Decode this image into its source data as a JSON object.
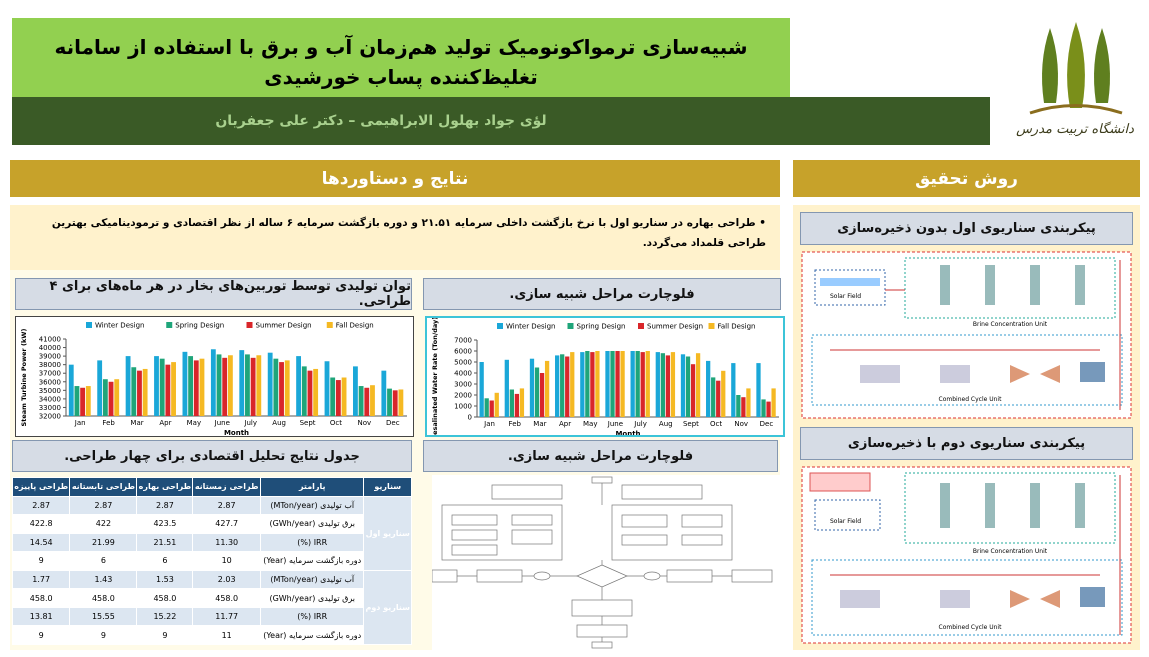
{
  "header": {
    "title": "شبیه‌سازی ترمواکونومیک تولید هم‌زمان آب و برق با استفاده از سامانه تغلیظ‌کننده پساب خورشیدی",
    "authors": "لؤی جواد بهلول الابراهیمی – دکتر علی جعفریان",
    "logo_text": "دانشگاه تربیت مدرس"
  },
  "method": {
    "title": "روش تحقیق",
    "scenario1_title": "پیکربندی سناریوی اول بدون ذخیره‌سازی",
    "scenario2_title": "پیکربندی سناریوی دوم با ذخیره‌سازی",
    "labels": [
      "Solar Field",
      "Brine Concentration Unit",
      "Combined Cycle Unit"
    ]
  },
  "results": {
    "title": "نتایج و دستاوردها",
    "bullet": "طراحی بهاره در سناریو اول با نرخ بازگشت داخلی سرمایه ۲۱.۵۱ و دوره بازگشت سرمایه ۶ ساله از نظر اقتصادی و ترمودینامیکی بهترین طراحی قلمداد می‌گردد.",
    "chart1_title": "توان تولیدی توسط توربین‌های بخار در هر ماه‌های برای ۴ طراحی.",
    "chart2_title": "فلوچارت مراحل شبیه سازی.",
    "table_title": "جدول نتایج تحلیل اقتصادی برای چهار طراحی.",
    "flowchart_title": "فلوچارت مراحل شبیه سازی."
  },
  "table": {
    "headers": [
      "سناریو",
      "پارامتر",
      "طراحی زمستانه",
      "طراحی بهاره",
      "طراحی تابستانه",
      "طراحی پاییزه"
    ],
    "groups": [
      {
        "name": "سناریو اول",
        "rows": [
          [
            "آب تولیدی (MTon/year)",
            "2.87",
            "2.87",
            "2.87",
            "2.87"
          ],
          [
            "برق تولیدی (GWh/year)",
            "427.7",
            "423.5",
            "422",
            "422.8"
          ],
          [
            "IRR (%)",
            "11.30",
            "21.51",
            "21.99",
            "14.54"
          ],
          [
            "دوره بازگشت سرمایه (Year)",
            "10",
            "6",
            "6",
            "9"
          ]
        ]
      },
      {
        "name": "سناریو دوم",
        "rows": [
          [
            "آب تولیدی (MTon/year)",
            "2.03",
            "1.53",
            "1.43",
            "1.77"
          ],
          [
            "برق تولیدی (GWh/year)",
            "458.0",
            "458.0",
            "458.0",
            "458.0"
          ],
          [
            "IRR (%)",
            "11.77",
            "15.22",
            "15.55",
            "13.81"
          ],
          [
            "دوره بازگشت سرمایه (Year)",
            "11",
            "9",
            "9",
            "9"
          ]
        ]
      }
    ]
  },
  "chart_data": [
    {
      "type": "bar",
      "x_label": "Month",
      "y_label": "Steam Turbine Power (kW)",
      "categories": [
        "Jan",
        "Feb",
        "Mar",
        "Apr",
        "May",
        "June",
        "July",
        "Aug",
        "Sept",
        "Oct",
        "Nov",
        "Dec"
      ],
      "series": [
        {
          "name": "Winter Design",
          "color": "#1aa7d8",
          "values": [
            38000,
            38500,
            39000,
            39000,
            39500,
            39800,
            39700,
            39400,
            39000,
            38400,
            37800,
            37300
          ]
        },
        {
          "name": "Spring Design",
          "color": "#1fa57a",
          "values": [
            35500,
            36300,
            37700,
            38700,
            39000,
            39200,
            39200,
            38700,
            37800,
            36500,
            35500,
            35200
          ]
        },
        {
          "name": "Summer Design",
          "color": "#d9262a",
          "values": [
            35300,
            36000,
            37300,
            38000,
            38500,
            38800,
            38800,
            38300,
            37300,
            36200,
            35300,
            35000
          ]
        },
        {
          "name": "Fall Design",
          "color": "#f5b923",
          "values": [
            35500,
            36300,
            37500,
            38300,
            38700,
            39100,
            39100,
            38500,
            37500,
            36500,
            35600,
            35100
          ]
        }
      ],
      "ylim": [
        32000,
        41000
      ],
      "yticks": [
        32000,
        33000,
        34000,
        35000,
        36000,
        37000,
        38000,
        39000,
        40000,
        41000
      ],
      "grid": false
    },
    {
      "type": "bar",
      "x_label": "Month",
      "y_label": "Desalinated Water Rate (Ton/day)",
      "categories": [
        "Jan",
        "Feb",
        "Mar",
        "Apr",
        "May",
        "June",
        "July",
        "Aug",
        "Sept",
        "Oct",
        "Nov",
        "Dec"
      ],
      "series": [
        {
          "name": "Winter Design",
          "color": "#1aa7d8",
          "values": [
            5000,
            5200,
            5300,
            5600,
            5900,
            6000,
            6000,
            5900,
            5700,
            5100,
            4900,
            4900
          ]
        },
        {
          "name": "Spring Design",
          "color": "#1fa57a",
          "values": [
            1700,
            2500,
            4500,
            5700,
            6000,
            6000,
            6000,
            5800,
            5500,
            3600,
            2000,
            1600
          ]
        },
        {
          "name": "Summer Design",
          "color": "#d9262a",
          "values": [
            1500,
            2100,
            4000,
            5500,
            5900,
            6000,
            5900,
            5600,
            4800,
            3300,
            1800,
            1400
          ]
        },
        {
          "name": "Fall Design",
          "color": "#f5b923",
          "values": [
            2200,
            2600,
            5100,
            5900,
            6000,
            6000,
            6000,
            5900,
            5800,
            4200,
            2600,
            2600
          ]
        }
      ],
      "ylim": [
        0,
        7000
      ],
      "yticks": [
        0,
        1000,
        2000,
        3000,
        4000,
        5000,
        6000,
        7000
      ],
      "grid": false
    }
  ]
}
